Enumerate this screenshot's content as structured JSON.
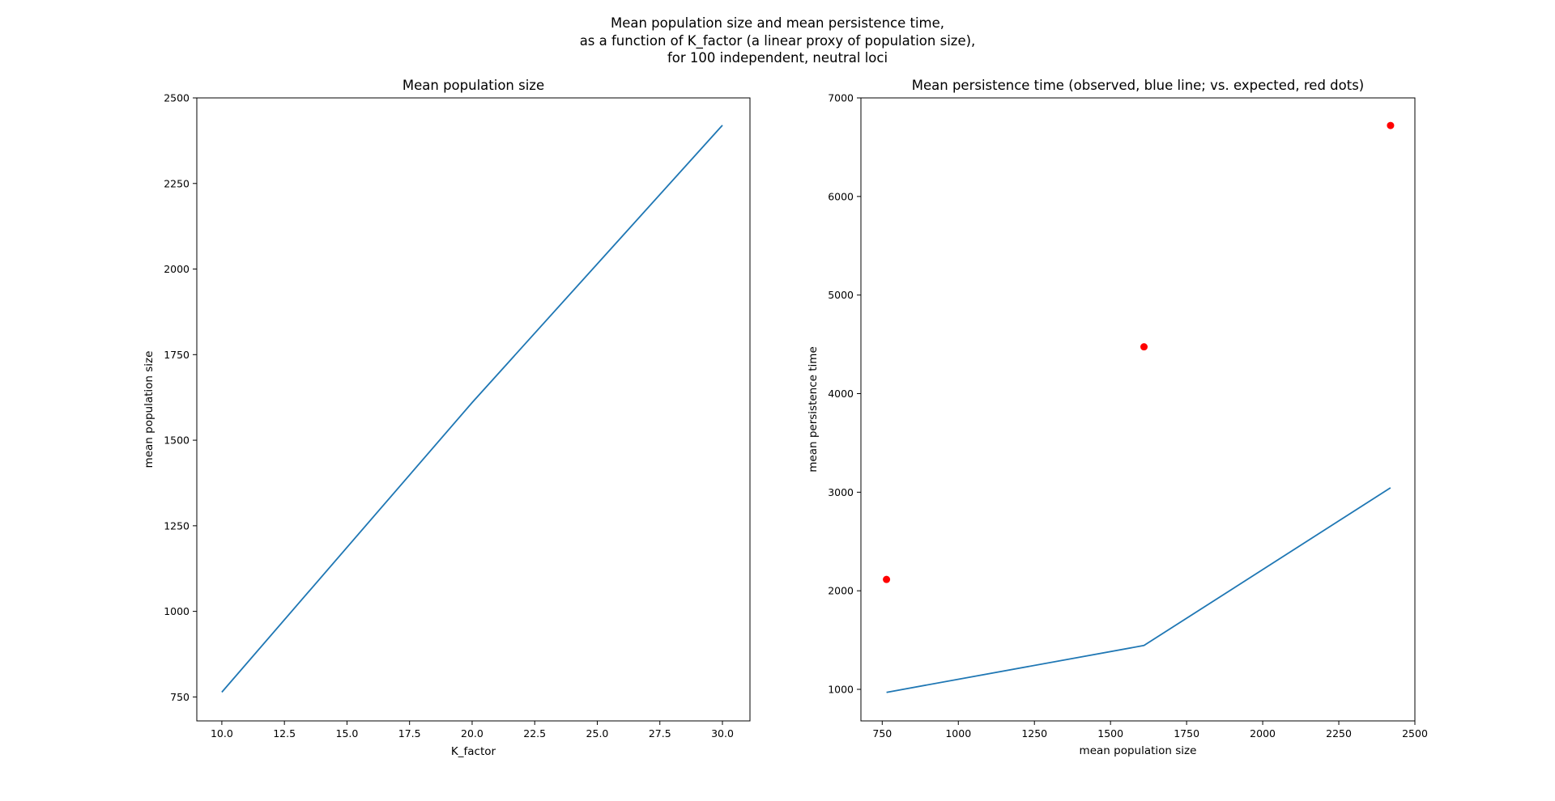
{
  "figure": {
    "suptitle_lines": [
      "Mean population size and mean persistence time,",
      "as a function of K_factor (a linear proxy of population size),",
      "for 100 independent, neutral loci"
    ]
  },
  "chart_data": [
    {
      "type": "line",
      "title": "Mean population size",
      "xlabel": "K_factor",
      "ylabel": "mean population size",
      "xlim": [
        9,
        31.1
      ],
      "ylim": [
        680,
        2500
      ],
      "xticks": [
        10.0,
        12.5,
        15.0,
        17.5,
        20.0,
        22.5,
        25.0,
        27.5,
        30.0
      ],
      "xtick_labels": [
        "10.0",
        "12.5",
        "15.0",
        "17.5",
        "20.0",
        "22.5",
        "25.0",
        "27.5",
        "30.0"
      ],
      "yticks": [
        750,
        1000,
        1250,
        1500,
        1750,
        2000,
        2250,
        2500
      ],
      "ytick_labels": [
        "750",
        "1000",
        "1250",
        "1500",
        "1750",
        "2000",
        "2250",
        "2500"
      ],
      "grid": false,
      "series": [
        {
          "style": "line",
          "color": "#1f77b4",
          "x": [
            10,
            20,
            30
          ],
          "y": [
            764,
            1610,
            2420
          ]
        }
      ]
    },
    {
      "type": "line",
      "title": "Mean persistence time (observed, blue line; vs. expected, red dots)",
      "xlabel": "mean population size",
      "ylabel": "mean persistence time",
      "xlim": [
        680,
        2500
      ],
      "ylim": [
        680,
        7000
      ],
      "xticks": [
        750,
        1000,
        1250,
        1500,
        1750,
        2000,
        2250,
        2500
      ],
      "xtick_labels": [
        "750",
        "1000",
        "1250",
        "1500",
        "1750",
        "2000",
        "2250",
        "2500"
      ],
      "yticks": [
        1000,
        2000,
        3000,
        4000,
        5000,
        6000,
        7000
      ],
      "ytick_labels": [
        "1000",
        "2000",
        "3000",
        "4000",
        "5000",
        "6000",
        "7000"
      ],
      "grid": false,
      "series": [
        {
          "style": "line",
          "color": "#1f77b4",
          "x": [
            764,
            1610,
            2420
          ],
          "y": [
            970,
            1445,
            3045
          ]
        },
        {
          "style": "scatter",
          "color": "#ff0000",
          "x": [
            764,
            1610,
            2420
          ],
          "y": [
            2115,
            4475,
            6720
          ]
        }
      ]
    }
  ]
}
